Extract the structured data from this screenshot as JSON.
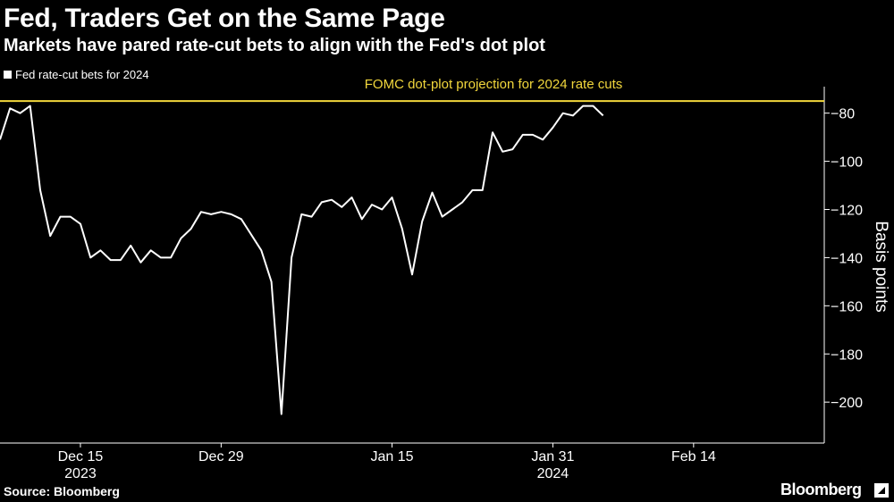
{
  "chart_data": {
    "type": "line",
    "title": "Fed, Traders Get on the Same Page",
    "subtitle": "Markets have pared rate-cut bets to align with the Fed's dot plot",
    "ylabel": "Basis points",
    "ylim": [
      -217,
      -69
    ],
    "y_ticks": [
      -80,
      -100,
      -120,
      -140,
      -160,
      -180,
      -200
    ],
    "x_ticks": [
      {
        "x": "2023-12-15",
        "label": "Dec 15",
        "year": "2023"
      },
      {
        "x": "2023-12-29",
        "label": "Dec 29",
        "year": ""
      },
      {
        "x": "2024-01-15",
        "label": "Jan 15",
        "year": ""
      },
      {
        "x": "2024-01-31",
        "label": "Jan 31",
        "year": "2024"
      },
      {
        "x": "2024-02-14",
        "label": "Feb 14",
        "year": ""
      }
    ],
    "xlim": [
      "2023-12-07",
      "2024-02-27"
    ],
    "reference_line": {
      "label": "FOMC dot-plot projection for 2024 rate cuts",
      "value": -75,
      "color": "#f2d73c"
    },
    "series": [
      {
        "name": "Fed rate-cut bets for 2024",
        "color": "#ffffff",
        "points": [
          {
            "x": "2023-12-07",
            "y": -91
          },
          {
            "x": "2023-12-08",
            "y": -78
          },
          {
            "x": "2023-12-09",
            "y": -80
          },
          {
            "x": "2023-12-10",
            "y": -77
          },
          {
            "x": "2023-12-11",
            "y": -112
          },
          {
            "x": "2023-12-12",
            "y": -131
          },
          {
            "x": "2023-12-13",
            "y": -123
          },
          {
            "x": "2023-12-14",
            "y": -123
          },
          {
            "x": "2023-12-15",
            "y": -126
          },
          {
            "x": "2023-12-16",
            "y": -140
          },
          {
            "x": "2023-12-17",
            "y": -137
          },
          {
            "x": "2023-12-18",
            "y": -141
          },
          {
            "x": "2023-12-19",
            "y": -141
          },
          {
            "x": "2023-12-20",
            "y": -135
          },
          {
            "x": "2023-12-21",
            "y": -142
          },
          {
            "x": "2023-12-22",
            "y": -137
          },
          {
            "x": "2023-12-23",
            "y": -140
          },
          {
            "x": "2023-12-24",
            "y": -140
          },
          {
            "x": "2023-12-25",
            "y": -132
          },
          {
            "x": "2023-12-26",
            "y": -128
          },
          {
            "x": "2023-12-27",
            "y": -121
          },
          {
            "x": "2023-12-28",
            "y": -122
          },
          {
            "x": "2023-12-29",
            "y": -121
          },
          {
            "x": "2023-12-30",
            "y": -122
          },
          {
            "x": "2023-12-31",
            "y": -124
          },
          {
            "x": "2024-01-02",
            "y": -137
          },
          {
            "x": "2024-01-03",
            "y": -150
          },
          {
            "x": "2024-01-04",
            "y": -205
          },
          {
            "x": "2024-01-05",
            "y": -140
          },
          {
            "x": "2024-01-06",
            "y": -122
          },
          {
            "x": "2024-01-07",
            "y": -123
          },
          {
            "x": "2024-01-08",
            "y": -117
          },
          {
            "x": "2024-01-09",
            "y": -116
          },
          {
            "x": "2024-01-10",
            "y": -119
          },
          {
            "x": "2024-01-11",
            "y": -115
          },
          {
            "x": "2024-01-12",
            "y": -124
          },
          {
            "x": "2024-01-13",
            "y": -118
          },
          {
            "x": "2024-01-14",
            "y": -120
          },
          {
            "x": "2024-01-15",
            "y": -115
          },
          {
            "x": "2024-01-16",
            "y": -128
          },
          {
            "x": "2024-01-17",
            "y": -147
          },
          {
            "x": "2024-01-18",
            "y": -125
          },
          {
            "x": "2024-01-19",
            "y": -113
          },
          {
            "x": "2024-01-20",
            "y": -123
          },
          {
            "x": "2024-01-21",
            "y": -120
          },
          {
            "x": "2024-01-22",
            "y": -117
          },
          {
            "x": "2024-01-23",
            "y": -112
          },
          {
            "x": "2024-01-24",
            "y": -112
          },
          {
            "x": "2024-01-25",
            "y": -88
          },
          {
            "x": "2024-01-26",
            "y": -96
          },
          {
            "x": "2024-01-27",
            "y": -95
          },
          {
            "x": "2024-01-28",
            "y": -89
          },
          {
            "x": "2024-01-29",
            "y": -89
          },
          {
            "x": "2024-01-30",
            "y": -91
          },
          {
            "x": "2024-01-31",
            "y": -86
          },
          {
            "x": "2024-02-01",
            "y": -80
          },
          {
            "x": "2024-02-02",
            "y": -81
          },
          {
            "x": "2024-02-03",
            "y": -77
          },
          {
            "x": "2024-02-04",
            "y": -77
          },
          {
            "x": "2024-02-05",
            "y": -81
          }
        ]
      }
    ]
  },
  "footer": {
    "source": "Source: Bloomberg",
    "brand": "Bloomberg"
  }
}
